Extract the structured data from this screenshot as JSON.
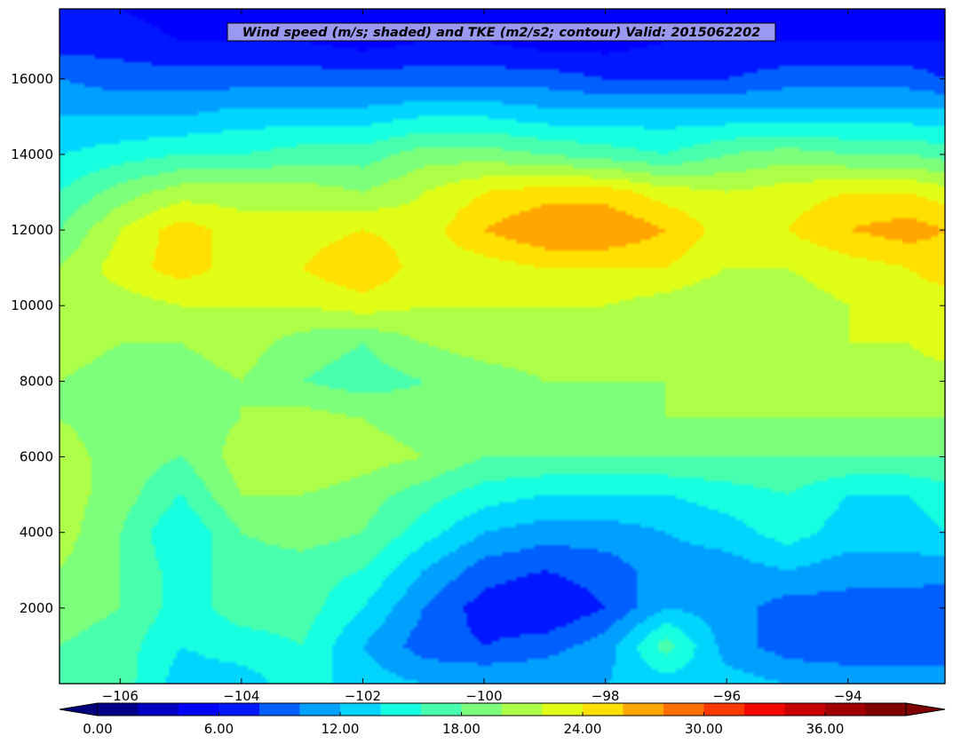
{
  "chart_data": {
    "type": "heatmap",
    "title": "Wind speed (m/s; shaded) and TKE (m2/s2; contour) Valid: 2015062202",
    "xlabel": "",
    "ylabel": "",
    "xlim": [
      -107.0,
      -92.4
    ],
    "ylim": [
      0,
      17850
    ],
    "xticks": [
      -106,
      -104,
      -102,
      -100,
      -98,
      -96,
      -94
    ],
    "xtick_labels": [
      "−106",
      "−104",
      "−102",
      "−100",
      "−98",
      "−96",
      "−94"
    ],
    "yticks": [
      2000,
      4000,
      6000,
      8000,
      10000,
      12000,
      14000,
      16000
    ],
    "ytick_labels": [
      "2000",
      "4000",
      "6000",
      "8000",
      "10000",
      "12000",
      "14000",
      "16000"
    ],
    "colorbar": {
      "min": 0,
      "max": 40,
      "step": 2,
      "extend": "both",
      "ticks": [
        0,
        6,
        12,
        18,
        24,
        30,
        36
      ],
      "tick_labels": [
        "0.00",
        "6.00",
        "12.00",
        "18.00",
        "24.00",
        "30.00",
        "36.00"
      ],
      "colors": [
        "#000088",
        "#0000c4",
        "#0000ff",
        "#0018ff",
        "#0060ff",
        "#00a0ff",
        "#00d4ff",
        "#16ffe1",
        "#48ffae",
        "#7cff7a",
        "#aeff48",
        "#e1ff16",
        "#ffe000",
        "#ffa600",
        "#ff7000",
        "#ff3800",
        "#f20800",
        "#c80000",
        "#a00000",
        "#800000"
      ],
      "under_color": "#00007f",
      "over_color": "#7f0000"
    },
    "x": [
      -107.0,
      -106.0,
      -105.0,
      -104.0,
      -103.0,
      -102.0,
      -101.0,
      -100.0,
      -99.0,
      -98.0,
      -97.0,
      -96.0,
      -95.0,
      -94.0,
      -93.0,
      -92.4
    ],
    "y": [
      0,
      1000,
      2000,
      3000,
      4000,
      5000,
      6000,
      7000,
      8000,
      9000,
      10000,
      11000,
      12000,
      13000,
      14000,
      15000,
      16000,
      17000,
      17850
    ],
    "z_wind_speed": [
      [
        16,
        17,
        13,
        13,
        15,
        13,
        12,
        12,
        12,
        12,
        13,
        13,
        12,
        12,
        12,
        12
      ],
      [
        18,
        17,
        14,
        15,
        16,
        12,
        9,
        8,
        9,
        11,
        17,
        11,
        9,
        8,
        8,
        8
      ],
      [
        19,
        18,
        15,
        17,
        17,
        14,
        10,
        7,
        6,
        8,
        12,
        11,
        9,
        9,
        9,
        8
      ],
      [
        20,
        18,
        15,
        17,
        17,
        16,
        12,
        9,
        8,
        9,
        11,
        11,
        12,
        11,
        11,
        11
      ],
      [
        21,
        18,
        14,
        18,
        19,
        18,
        15,
        12,
        11,
        11,
        12,
        13,
        15,
        13,
        13,
        14
      ],
      [
        21,
        19,
        16,
        20,
        20,
        19,
        17,
        15,
        14,
        14,
        14,
        15,
        16,
        14,
        14,
        15
      ],
      [
        21,
        19,
        18,
        21,
        22,
        21,
        20,
        18,
        18,
        18,
        18,
        18,
        18,
        18,
        18,
        18
      ],
      [
        20,
        19,
        19,
        20,
        21,
        20,
        19,
        19,
        19,
        19,
        20,
        20,
        20,
        20,
        20,
        20
      ],
      [
        20,
        19,
        19,
        20,
        18,
        17,
        18,
        19,
        20,
        20,
        20,
        21,
        22,
        21,
        21,
        21
      ],
      [
        21,
        20,
        20,
        21,
        19,
        18,
        20,
        21,
        21,
        21,
        21,
        21,
        22,
        22,
        22,
        23
      ],
      [
        21,
        21,
        22,
        22,
        22,
        23,
        22,
        22,
        22,
        22,
        21,
        20,
        21,
        22,
        23,
        23
      ],
      [
        20,
        23,
        25,
        23,
        24,
        26,
        23,
        23,
        24,
        24,
        24,
        22,
        22,
        23,
        24,
        25
      ],
      [
        18,
        22,
        25,
        23,
        23,
        24,
        23,
        26,
        28,
        28,
        26,
        23,
        24,
        26,
        27,
        26
      ],
      [
        16,
        19,
        21,
        21,
        21,
        20,
        22,
        24,
        25,
        25,
        23,
        22,
        23,
        24,
        24,
        23
      ],
      [
        14,
        15,
        16,
        16,
        17,
        17,
        19,
        19,
        18,
        17,
        16,
        18,
        19,
        18,
        18,
        17
      ],
      [
        12,
        12,
        12,
        13,
        13,
        13,
        14,
        14,
        13,
        13,
        13,
        13,
        13,
        13,
        13,
        13
      ],
      [
        10,
        9,
        9,
        9,
        9,
        9,
        9,
        9,
        9,
        8,
        8,
        8,
        9,
        9,
        9,
        8
      ],
      [
        7,
        7,
        6,
        6,
        6,
        5,
        6,
        6,
        5,
        5,
        6,
        6,
        6,
        6,
        6,
        6
      ],
      [
        6,
        6,
        5,
        5,
        5,
        5,
        5,
        5,
        5,
        5,
        5,
        5,
        5,
        5,
        5,
        5
      ]
    ]
  }
}
